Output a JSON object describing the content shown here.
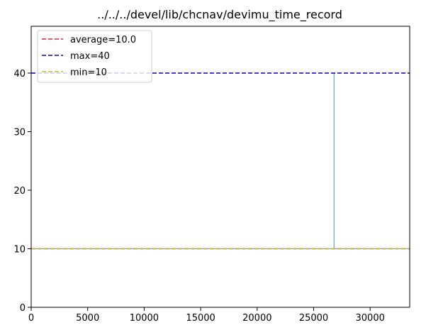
{
  "chart_data": {
    "type": "line",
    "title": "../../../devel/lib/chcnav/devimu_time_record",
    "xlabel": "",
    "ylabel": "",
    "xlim": [
      0,
      33500
    ],
    "ylim": [
      0,
      48
    ],
    "xticks": [
      0,
      5000,
      10000,
      15000,
      20000,
      25000,
      30000
    ],
    "yticks": [
      0,
      10,
      20,
      30,
      40
    ],
    "grid": false,
    "legend_position": "top-left",
    "series": [
      {
        "name": "",
        "color": "#1f77b4",
        "x": [
          0,
          26800,
          26800,
          26800,
          26800,
          26800,
          33300
        ],
        "y": [
          10,
          10,
          20,
          40,
          20,
          10,
          10
        ]
      }
    ],
    "reference_lines": [
      {
        "name": "average=10.0",
        "value": 10.0,
        "color": "#d62728",
        "style": "dashed"
      },
      {
        "name": "max=40",
        "value": 40,
        "color": "#0000cc",
        "style": "dashed"
      },
      {
        "name": "min=10",
        "value": 10,
        "color": "#bcbd22",
        "style": "dashed"
      }
    ]
  }
}
